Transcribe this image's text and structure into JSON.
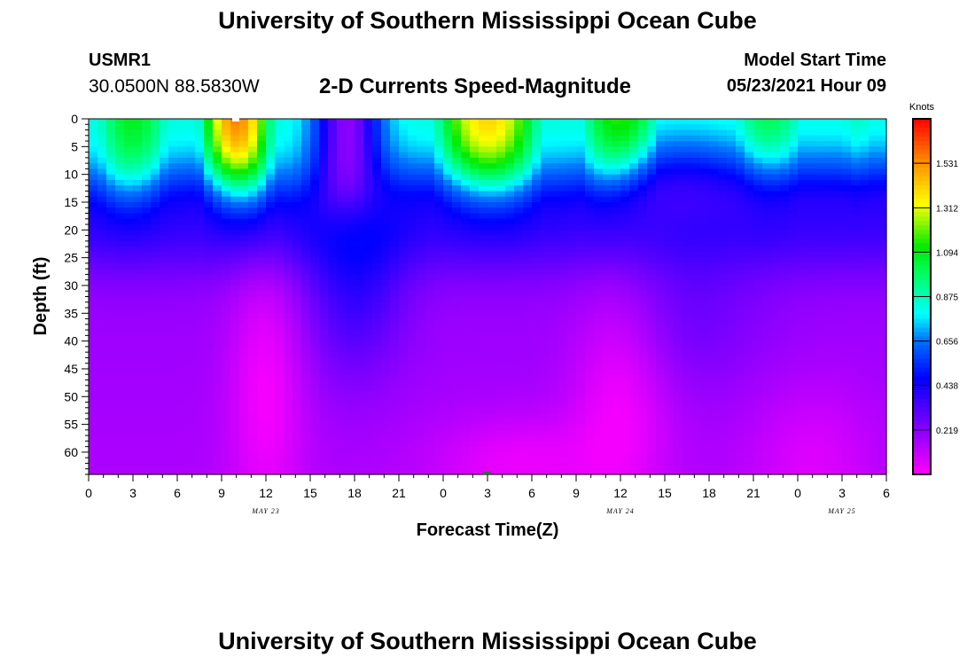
{
  "header": {
    "title_top": "University of Southern Mississippi Ocean Cube",
    "title_bottom": "University of Southern Mississippi Ocean Cube",
    "station_id": "USMR1",
    "station_coords": "30.0500N  88.5830W",
    "model_start_label": "Model Start Time",
    "model_start_value": "05/23/2021 Hour 09"
  },
  "chart_data": {
    "type": "heatmap",
    "title": "2-D Currents Speed-Magnitude",
    "xlabel": "Forecast Time(Z)",
    "ylabel": "Depth (ft)",
    "x_range_hours": [
      0,
      54
    ],
    "y_range_ft": [
      0,
      64
    ],
    "x_ticks": [
      "0",
      "3",
      "6",
      "9",
      "12",
      "15",
      "18",
      "21",
      "0",
      "3",
      "6",
      "9",
      "12",
      "15",
      "18",
      "21",
      "0",
      "3",
      "6"
    ],
    "y_ticks": [
      "0",
      "5",
      "10",
      "15",
      "20",
      "25",
      "30",
      "35",
      "40",
      "45",
      "50",
      "55",
      "60"
    ],
    "date_labels": [
      {
        "label": "MAY 23",
        "hour": 12
      },
      {
        "label": "MAY 24",
        "hour": 36
      },
      {
        "label": "MAY 25",
        "hour": 51
      }
    ],
    "colorbar": {
      "title": "Knots",
      "range": [
        0,
        1.75
      ],
      "labels": [
        "1.531",
        "1.312",
        "1.094",
        "0.875",
        "0.656",
        "0.438",
        "0.219"
      ]
    },
    "speed_peaks_knots": [
      {
        "hour": 10,
        "depth_ft": 1,
        "speed": 1.6
      },
      {
        "hour": 3,
        "depth_ft": 3,
        "speed": 1.1
      },
      {
        "hour": 27,
        "depth_ft": 2,
        "speed": 1.45
      },
      {
        "hour": 36,
        "depth_ft": 3,
        "speed": 1.2
      },
      {
        "hour": 46,
        "depth_ft": 4,
        "speed": 1.05
      },
      {
        "hour": 52,
        "depth_ft": 4,
        "speed": 0.9
      }
    ]
  }
}
